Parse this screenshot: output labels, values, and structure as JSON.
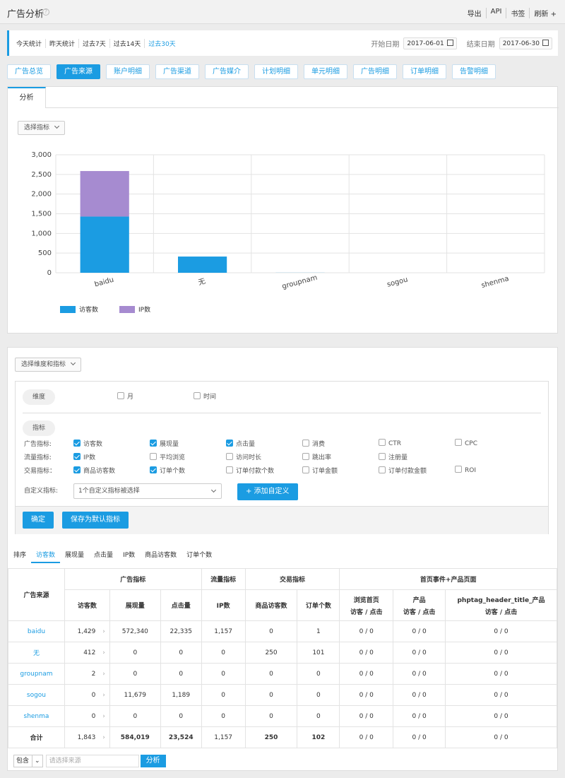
{
  "header": {
    "title": "广告分析",
    "links": [
      "导出",
      "API",
      "书签",
      "刷新 +"
    ]
  },
  "datebar": {
    "periods": [
      "今天统计",
      "昨天统计",
      "过去7天",
      "过去14天",
      "过去30天"
    ],
    "active_period": "过去30天",
    "start_label": "开始日期",
    "start_value": "2017-06-01",
    "end_label": "结束日期",
    "end_value": "2017-06-30"
  },
  "nav_tabs": [
    "广告总览",
    "广告来源",
    "账户明细",
    "广告渠道",
    "广告媒介",
    "计划明细",
    "单元明细",
    "广告明细",
    "订单明细",
    "告警明细"
  ],
  "active_nav": "广告来源",
  "panel1": {
    "tab": "分析",
    "select_metric": "选择指标"
  },
  "chart_data": {
    "type": "bar",
    "stacked": true,
    "categories": [
      "baidu",
      "无",
      "groupnam",
      "sogou",
      "shenma"
    ],
    "series": [
      {
        "name": "访客数",
        "values": [
          1429,
          412,
          2,
          0,
          0
        ],
        "color": "#1b9ce2"
      },
      {
        "name": "IP数",
        "values": [
          1157,
          0,
          0,
          0,
          0
        ],
        "color": "#a68bd0"
      }
    ],
    "ylim": [
      0,
      3000
    ],
    "yticks": [
      "0",
      "500",
      "1,000",
      "1,500",
      "2,000",
      "2,500",
      "3,000"
    ],
    "grid": true,
    "legend_position": "bottom-left"
  },
  "filter": {
    "select_dim": "选择维度和指标",
    "dimension_label": "维度",
    "dimensions": [
      {
        "label": "月",
        "checked": false
      },
      {
        "label": "时间",
        "checked": false
      }
    ],
    "metric_label": "指标",
    "rows": [
      {
        "label": "广告指标:",
        "items": [
          {
            "label": "访客数",
            "checked": true
          },
          {
            "label": "展现量",
            "checked": true
          },
          {
            "label": "点击量",
            "checked": true
          },
          {
            "label": "消费",
            "checked": false
          },
          {
            "label": "CTR",
            "checked": false
          },
          {
            "label": "CPC",
            "checked": false
          }
        ]
      },
      {
        "label": "流量指标:",
        "items": [
          {
            "label": "IP数",
            "checked": true
          },
          {
            "label": "平均浏览",
            "checked": false
          },
          {
            "label": "访问时长",
            "checked": false
          },
          {
            "label": "跳出率",
            "checked": false
          },
          {
            "label": "注册量",
            "checked": false
          }
        ]
      },
      {
        "label": "交易指标：",
        "items": [
          {
            "label": "商品访客数",
            "checked": true
          },
          {
            "label": "订单个数",
            "checked": true
          },
          {
            "label": "订单付款个数",
            "checked": false
          },
          {
            "label": "订单金额",
            "checked": false
          },
          {
            "label": "订单付款金额",
            "checked": false
          },
          {
            "label": "ROI",
            "checked": false
          }
        ]
      }
    ],
    "custom_label": "自定义指标:",
    "custom_select": "1个自定义指标被选择",
    "add_custom": "+ 添加自定义",
    "confirm": "确定",
    "save_default": "保存为默认指标"
  },
  "sort": {
    "label": "排序",
    "tabs": [
      "访客数",
      "展现量",
      "点击量",
      "IP数",
      "商品访客数",
      "订单个数"
    ],
    "active": "访客数"
  },
  "table": {
    "group_headers": {
      "source": "广告来源",
      "ad": "广告指标",
      "traffic": "流量指标",
      "trade": "交易指标",
      "home": "首页事件+产品页面"
    },
    "headers": {
      "visitors": "访客数",
      "impressions": "展现量",
      "clicks": "点击量",
      "ip": "IP数",
      "product_visitors": "商品访客数",
      "orders": "订单个数",
      "home1a": "浏览首页",
      "home1b": "访客 / 点击",
      "home2a": "产品",
      "home2b": "访客 / 点击",
      "home3a": "phptag_header_title_产品",
      "home3b": "访客 / 点击"
    },
    "rows": [
      {
        "source": "baidu",
        "visitors": "1,429",
        "impressions": "572,340",
        "clicks": "22,335",
        "ip": "1,157",
        "product_visitors": "0",
        "orders": "1",
        "h1": "0 / 0",
        "h2": "0 / 0",
        "h3": "0 / 0"
      },
      {
        "source": "无",
        "visitors": "412",
        "impressions": "0",
        "clicks": "0",
        "ip": "0",
        "product_visitors": "250",
        "orders": "101",
        "h1": "0 / 0",
        "h2": "0 / 0",
        "h3": "0 / 0"
      },
      {
        "source": "groupnam",
        "visitors": "2",
        "impressions": "0",
        "clicks": "0",
        "ip": "0",
        "product_visitors": "0",
        "orders": "0",
        "h1": "0 / 0",
        "h2": "0 / 0",
        "h3": "0 / 0"
      },
      {
        "source": "sogou",
        "visitors": "0",
        "impressions": "11,679",
        "clicks": "1,189",
        "ip": "0",
        "product_visitors": "0",
        "orders": "0",
        "h1": "0 / 0",
        "h2": "0 / 0",
        "h3": "0 / 0"
      },
      {
        "source": "shenma",
        "visitors": "0",
        "impressions": "0",
        "clicks": "0",
        "ip": "0",
        "product_visitors": "0",
        "orders": "0",
        "h1": "0 / 0",
        "h2": "0 / 0",
        "h3": "0 / 0"
      }
    ],
    "total": {
      "source": "合计",
      "visitors": "1,843",
      "impressions": "584,019",
      "clicks": "23,524",
      "ip": "1,157",
      "product_visitors": "250",
      "orders": "102",
      "h1": "0 / 0",
      "h2": "0 / 0",
      "h3": "0 / 0"
    }
  },
  "bottom": {
    "include": "包含",
    "placeholder": "请选择来源",
    "analyze": "分析"
  }
}
